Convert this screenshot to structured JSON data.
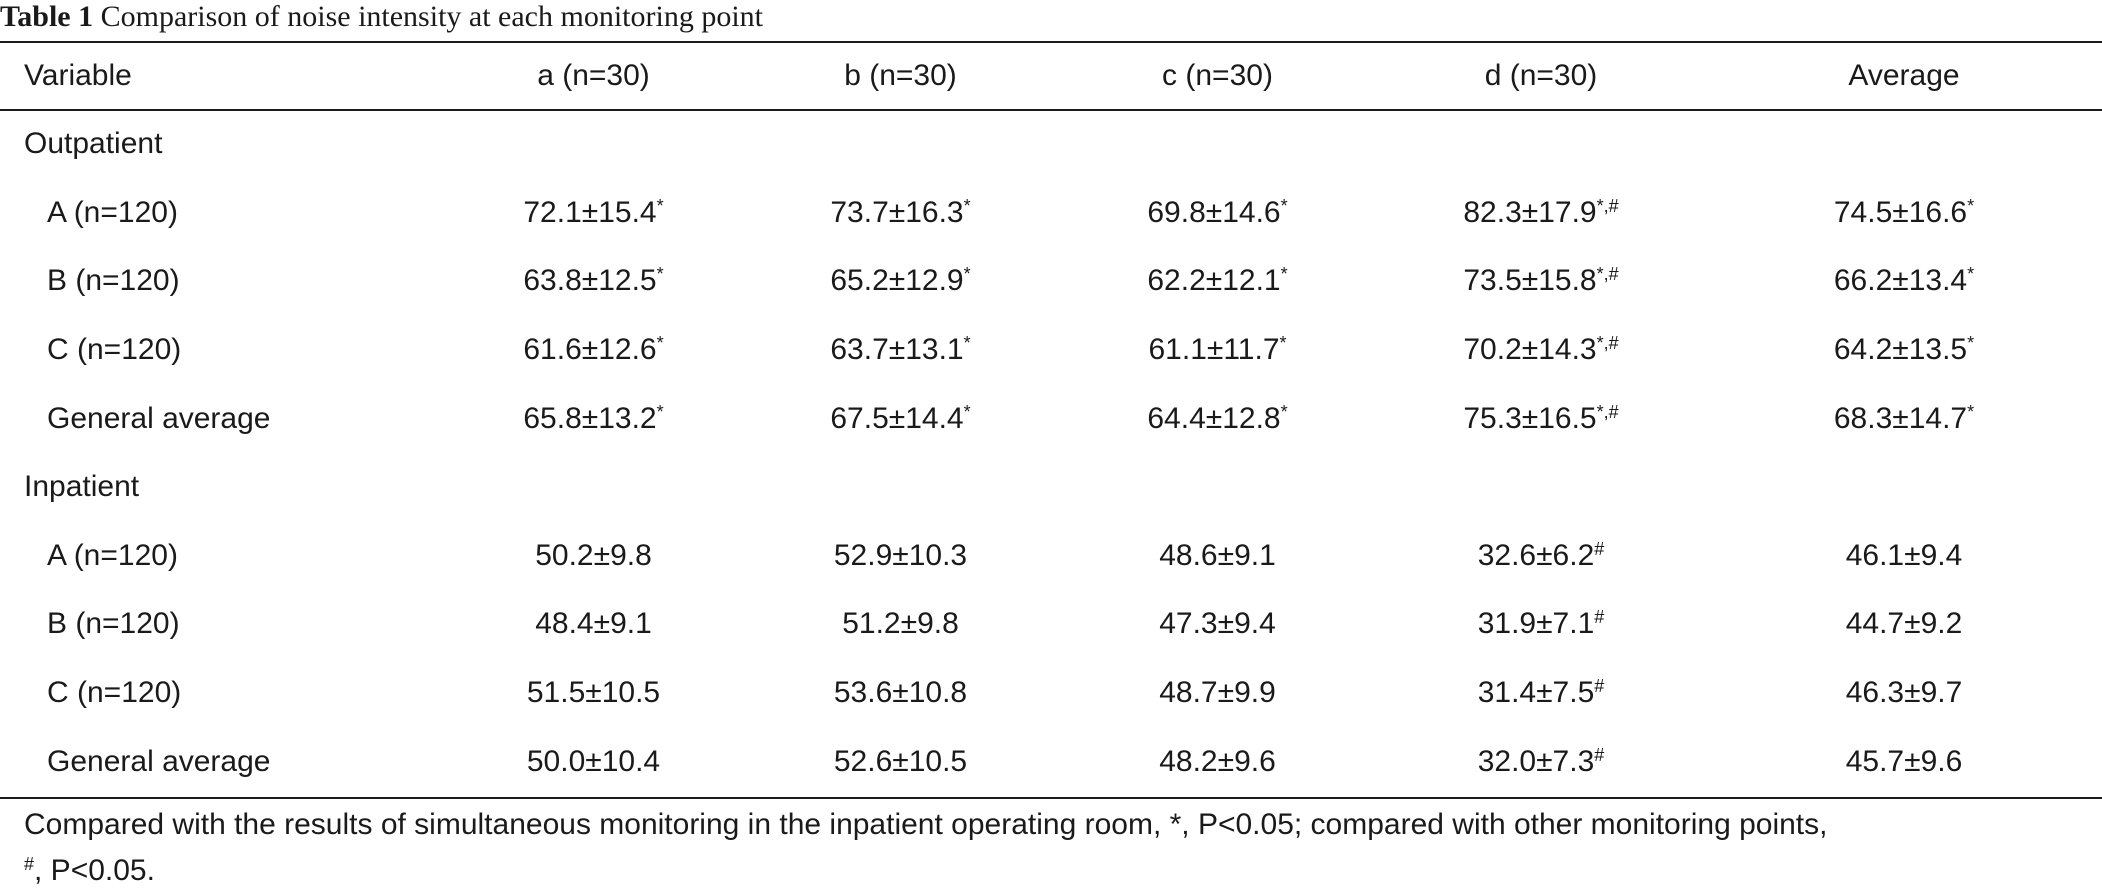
{
  "caption": {
    "label": "Table 1",
    "text": "Comparison of noise intensity at each monitoring point"
  },
  "table": {
    "headers": [
      "Variable",
      "a (n=30)",
      "b (n=30)",
      "c (n=30)",
      "d (n=30)",
      "Average"
    ],
    "sections": [
      {
        "label": "Outpatient",
        "rows": [
          {
            "label": "A (n=120)",
            "cells": [
              {
                "v": "72.1±15.4",
                "s": "*"
              },
              {
                "v": "73.7±16.3",
                "s": "*"
              },
              {
                "v": "69.8±14.6",
                "s": "*"
              },
              {
                "v": "82.3±17.9",
                "s": "*,#"
              },
              {
                "v": "74.5±16.6",
                "s": "*"
              }
            ]
          },
          {
            "label": "B (n=120)",
            "cells": [
              {
                "v": "63.8±12.5",
                "s": "*"
              },
              {
                "v": "65.2±12.9",
                "s": "*"
              },
              {
                "v": "62.2±12.1",
                "s": "*"
              },
              {
                "v": "73.5±15.8",
                "s": "*,#"
              },
              {
                "v": "66.2±13.4",
                "s": "*"
              }
            ]
          },
          {
            "label": "C (n=120)",
            "cells": [
              {
                "v": "61.6±12.6",
                "s": "*"
              },
              {
                "v": "63.7±13.1",
                "s": "*"
              },
              {
                "v": "61.1±11.7",
                "s": "*"
              },
              {
                "v": "70.2±14.3",
                "s": "*,#"
              },
              {
                "v": "64.2±13.5",
                "s": "*"
              }
            ]
          },
          {
            "label": "General average",
            "cells": [
              {
                "v": "65.8±13.2",
                "s": "*"
              },
              {
                "v": "67.5±14.4",
                "s": "*"
              },
              {
                "v": "64.4±12.8",
                "s": "*"
              },
              {
                "v": "75.3±16.5",
                "s": "*,#"
              },
              {
                "v": "68.3±14.7",
                "s": "*"
              }
            ]
          }
        ]
      },
      {
        "label": "Inpatient",
        "rows": [
          {
            "label": "A (n=120)",
            "cells": [
              {
                "v": "50.2±9.8",
                "s": ""
              },
              {
                "v": "52.9±10.3",
                "s": ""
              },
              {
                "v": "48.6±9.1",
                "s": ""
              },
              {
                "v": "32.6±6.2",
                "s": "#"
              },
              {
                "v": "46.1±9.4",
                "s": ""
              }
            ]
          },
          {
            "label": "B (n=120)",
            "cells": [
              {
                "v": "48.4±9.1",
                "s": ""
              },
              {
                "v": "51.2±9.8",
                "s": ""
              },
              {
                "v": "47.3±9.4",
                "s": ""
              },
              {
                "v": "31.9±7.1",
                "s": "#"
              },
              {
                "v": "44.7±9.2",
                "s": ""
              }
            ]
          },
          {
            "label": "C (n=120)",
            "cells": [
              {
                "v": "51.5±10.5",
                "s": ""
              },
              {
                "v": "53.6±10.8",
                "s": ""
              },
              {
                "v": "48.7±9.9",
                "s": ""
              },
              {
                "v": "31.4±7.5",
                "s": "#"
              },
              {
                "v": "46.3±9.7",
                "s": ""
              }
            ]
          },
          {
            "label": "General average",
            "cells": [
              {
                "v": "50.0±10.4",
                "s": ""
              },
              {
                "v": "52.6±10.5",
                "s": ""
              },
              {
                "v": "48.2±9.6",
                "s": ""
              },
              {
                "v": "32.0±7.3",
                "s": "#"
              },
              {
                "v": "45.7±9.6",
                "s": ""
              }
            ]
          }
        ]
      }
    ]
  },
  "footnote": {
    "line1": "Compared with the results of simultaneous monitoring in the inpatient operating room, *, P<0.05; compared with other monitoring points,",
    "mark": "#",
    "line2": ", P<0.05."
  }
}
